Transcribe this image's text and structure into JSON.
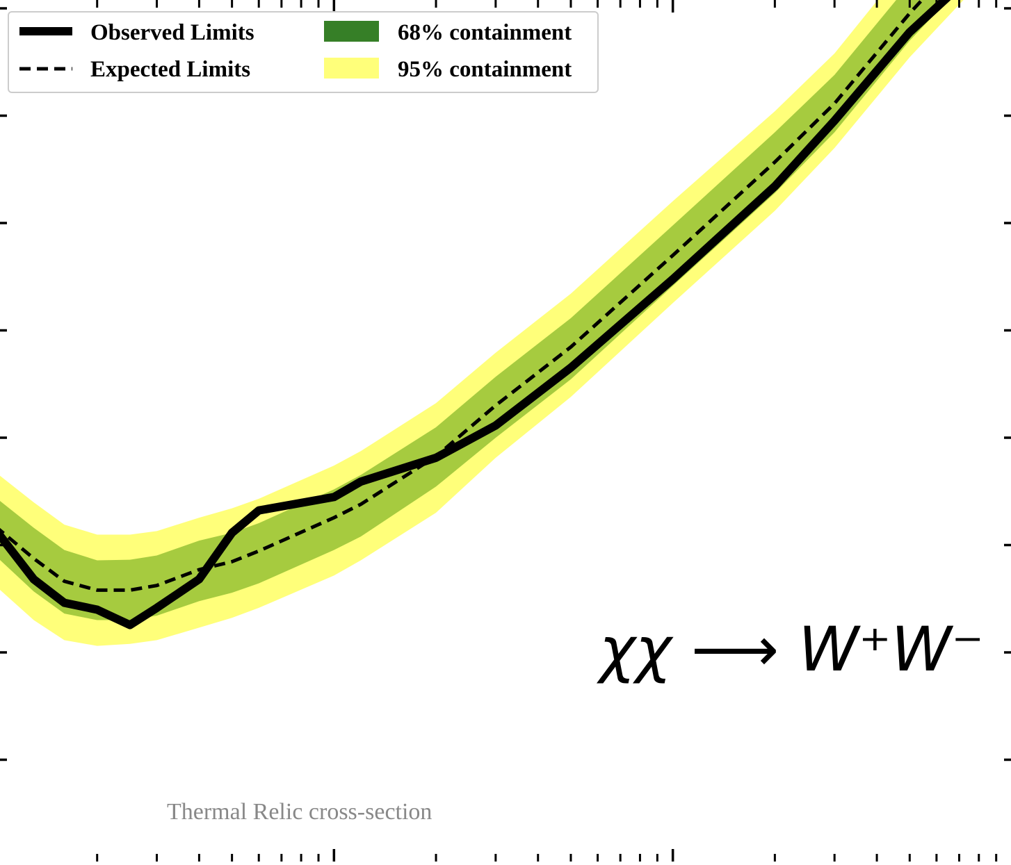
{
  "chart_data": {
    "type": "line",
    "xscale": "log",
    "yscale": "log",
    "xlim": [
      1,
      1000
    ],
    "ylim": [
      1,
      100000000
    ],
    "grid": false,
    "legend_placement": "top-left",
    "annotation": "χχ ⟶ W⁺W⁻",
    "reference_line": {
      "label": "Thermal Relic cross-section",
      "y": 0.87
    },
    "observed": {
      "name": "Observed Limits",
      "x": [
        1,
        1.3,
        1.6,
        2.0,
        2.5,
        3.0,
        4.0,
        5.0,
        6.0,
        10,
        12,
        20,
        30,
        50,
        100,
        200,
        300,
        500,
        1000
      ],
      "y": [
        1400,
        480,
        290,
        250,
        180,
        260,
        480,
        1300,
        2100,
        2800,
        3900,
        6500,
        13000,
        45000,
        300000,
        2200000,
        9000000,
        60000000,
        450000000
      ]
    },
    "expected": {
      "name": "Expected Limits",
      "x": [
        1,
        1.3,
        1.6,
        2.0,
        2.5,
        3.0,
        4.0,
        5.0,
        6.0,
        10,
        12,
        20,
        30,
        50,
        100,
        200,
        300,
        500,
        1000
      ],
      "y": [
        1500,
        750,
        460,
        380,
        380,
        420,
        590,
        700,
        880,
        1800,
        2400,
        6700,
        20000,
        70000,
        500000,
        3700000,
        13000000,
        90000000,
        950000000
      ]
    },
    "band_68": {
      "name": "68% containment",
      "color": "#a6cb3f",
      "legend_color": "#367f27",
      "x": [
        1,
        1.3,
        1.6,
        2.0,
        2.5,
        3.0,
        4.0,
        5.0,
        6.0,
        10,
        12,
        20,
        30,
        50,
        100,
        200,
        300,
        500,
        1000
      ],
      "lower": [
        800,
        370,
        230,
        200,
        200,
        220,
        300,
        360,
        440,
        900,
        1200,
        3500,
        10000,
        35000,
        260000,
        1900000,
        7000000,
        50000000,
        500000000
      ],
      "upper": [
        2800,
        1450,
        900,
        720,
        730,
        800,
        1100,
        1300,
        1600,
        3300,
        4500,
        12500,
        37000,
        130000,
        950000,
        7000000,
        24000000,
        170000000,
        1800000000
      ]
    },
    "band_95": {
      "name": "95% containment",
      "color": "#ffff7a",
      "x": [
        1,
        1.3,
        1.6,
        2.0,
        2.5,
        3.0,
        4.0,
        5.0,
        6.0,
        10,
        12,
        20,
        30,
        50,
        100,
        200,
        300,
        500,
        1000
      ],
      "lower": [
        420,
        200,
        130,
        115,
        120,
        130,
        170,
        210,
        260,
        520,
        720,
        2000,
        6500,
        24000,
        180000,
        1300000,
        5000000,
        35000000,
        360000000
      ],
      "upper": [
        4800,
        2500,
        1550,
        1250,
        1250,
        1350,
        1800,
        2200,
        2700,
        5500,
        7500,
        21000,
        62000,
        220000,
        1600000,
        11000000,
        38000000,
        280000000,
        2800000000
      ]
    }
  }
}
